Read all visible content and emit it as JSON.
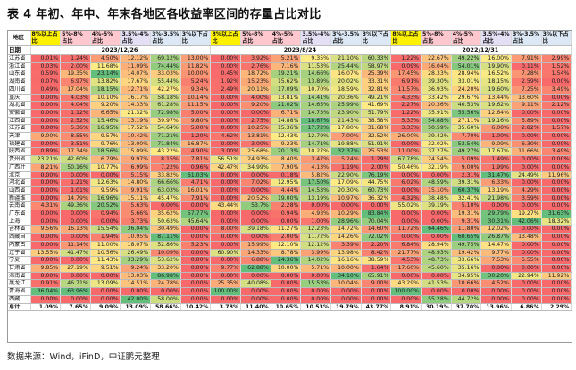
{
  "title": "表 4  年初、年中、年末各地区各收益率区间的存量占比对比",
  "source": "数据来源：Wind，iFinD，中证鹏元整理",
  "columns": {
    "region": "地区",
    "date": "日期",
    "bucket_labels": [
      "8%以上占比",
      "5%-8%占比",
      "4%-5%占比",
      "3.5%-4%占比",
      "3%-3.5%占比",
      "3%以下占比"
    ],
    "bucket_colors": [
      "#fff200",
      "#ffc7ce",
      "#ffc7ce",
      "#e4dff5",
      "#dce8f5",
      "#dce8f5"
    ],
    "dates": [
      "2023/12/26",
      "2023/8/24",
      "2022/12/31"
    ]
  },
  "rows": [
    {
      "region": "江苏省",
      "v": [
        "0.01%",
        "1.24%",
        "4.50%",
        "12.12%",
        "69.12%",
        "13.00%",
        "0.00%",
        "3.92%",
        "5.21%",
        "9.35%",
        "21.10%",
        "60.33%",
        "1.22%",
        "22.67%",
        "49.22%",
        "16.00%",
        "7.91%",
        "2.99%"
      ]
    },
    {
      "region": "浙江省",
      "v": [
        "0.03%",
        "2.00%",
        "11.68%",
        "11.09%",
        "74.44%",
        "11.82%",
        "0.00%",
        "2.76%",
        "7.16%",
        "11.53%",
        "25.44%",
        "58.97%",
        "0.09%",
        "16.04%",
        "54.01%",
        "19.90%",
        "0.11%",
        "1.52%"
      ]
    },
    {
      "region": "山东省",
      "v": [
        "0.59%",
        "19.35%",
        "23.14%",
        "14.07%",
        "33.03%",
        "10.00%",
        "0.45%",
        "18.72%",
        "19.21%",
        "14.66%",
        "16.07%",
        "25.39%",
        "17.45%",
        "28.33%",
        "28.94%",
        "16.52%",
        "7.28%",
        "1.54%"
      ]
    },
    {
      "region": "湖南省",
      "v": [
        "0.07%",
        "6.97%",
        "13.82%",
        "17.67%",
        "55.44%",
        "5.24%",
        "1.92%",
        "15.23%",
        "15.62%",
        "13.89%",
        "20.02%",
        "33.31%",
        "6.91%",
        "39.30%",
        "33.01%",
        "18.15%",
        "2.59%",
        "0.00%"
      ]
    },
    {
      "region": "四川省",
      "v": [
        "0.49%",
        "17.04%",
        "18.15%",
        "12.71%",
        "42.27%",
        "9.34%",
        "2.49%",
        "20.11%",
        "17.09%",
        "10.70%",
        "18.59%",
        "32.81%",
        "11.57%",
        "36.93%",
        "24.20%",
        "19.60%",
        "7.25%",
        "3.49%"
      ]
    },
    {
      "region": "重庆",
      "v": [
        "0.00%",
        "4.03%",
        "10.10%",
        "16.17%",
        "58.18%",
        "10.14%",
        "0.00%",
        "4.00%",
        "13.81%",
        "14.41%",
        "20.36%",
        "49.21%",
        "4.33%",
        "33.42%",
        "29.67%",
        "13.44%",
        "13.60%",
        "0.00%"
      ]
    },
    {
      "region": "湖北省",
      "v": [
        "0.00%",
        "4.04%",
        "9.20%",
        "14.33%",
        "61.28%",
        "11.15%",
        "0.00%",
        "9.20%",
        "21.02%",
        "14.65%",
        "25.99%",
        "41.69%",
        "2.27%",
        "20.36%",
        "40.53%",
        "19.62%",
        "9.11%",
        "2.12%"
      ]
    },
    {
      "region": "安徽省",
      "v": [
        "0.00%",
        "1.12%",
        "6.65%",
        "21.32%",
        "72.98%",
        "5.00%",
        "0.00%",
        "0.00%",
        "6.71%",
        "14.73%",
        "23.90%",
        "51.79%",
        "1.22%",
        "35.91%",
        "55.56%",
        "12.64%",
        "0.00%",
        "0.00%"
      ]
    },
    {
      "region": "江西省",
      "v": [
        "0.00%",
        "2.52%",
        "15.46%",
        "13.19%",
        "39.97%",
        "9.80%",
        "0.00%",
        "2.75%",
        "14.88%",
        "18.67%",
        "21.43%",
        "38.58%",
        "5.33%",
        "54.88%",
        "27.11%",
        "19.16%",
        "5.89%",
        "0.00%"
      ]
    },
    {
      "region": "江苏省",
      "v": [
        "0.00%",
        "5.36%",
        "16.95%",
        "17.52%",
        "54.64%",
        "5.00%",
        "0.00%",
        "10.25%",
        "15.36%",
        "17.72%",
        "17.80%",
        "31.68%",
        "3.33%",
        "50.59%",
        "35.60%",
        "6.00%",
        "2.82%",
        "1.57%"
      ]
    },
    {
      "region": "天津",
      "v": [
        "9.00%",
        "8.55%",
        "9.57%",
        "10.42%",
        "71.21%",
        "1.20%",
        "4.62%",
        "13.81%",
        "12.43%",
        "12.79%",
        "7.00%",
        "32.52%",
        "26.00%",
        "39.42%",
        "7.70%",
        "1.00%",
        "0.00%",
        "0.00%"
      ]
    },
    {
      "region": "福建省",
      "v": [
        "0.00%",
        "3.51%",
        "9.76%",
        "13.00%",
        "71.84%",
        "16.87%",
        "0.00%",
        "3.00%",
        "9.23%",
        "14.71%",
        "19.88%",
        "51.91%",
        "0.00%",
        "32.02%",
        "53.54%",
        "9.09%",
        "6.30%",
        "0.00%"
      ]
    },
    {
      "region": "陕西省",
      "v": [
        "0.89%",
        "17.34%",
        "18.56%",
        "15.09%",
        "43.22%",
        "4.90%",
        "3.00%",
        "25.68%",
        "20.13%",
        "10.27%",
        "32.37%",
        "25.53%",
        "11.00%",
        "37.27%",
        "49.27%",
        "17.67%",
        "11.66%",
        "3.49%"
      ]
    },
    {
      "region": "贵州省",
      "v": [
        "23.21%",
        "42.60%",
        "6.79%",
        "9.97%",
        "8.15%",
        "7.81%",
        "56.51%",
        "24.93%",
        "8.40%",
        "3.47%",
        "5.24%",
        "1.29%",
        "67.78%",
        "24.54%",
        "5.09%",
        "1.49%",
        "0.00%",
        "0.00%"
      ]
    },
    {
      "region": "广西壮",
      "v": [
        "8.21%",
        "50.16%",
        "10.77%",
        "6.99%",
        "7.22%",
        "0.96%",
        "42.47%",
        "34.99%",
        "7.90%",
        "4.13%",
        "1.19%",
        "2.00%",
        "50.46%",
        "32.19%",
        "9.00%",
        "1.99%",
        "0.00%",
        "0.00%"
      ]
    },
    {
      "region": "北京",
      "v": [
        "0.00%",
        "0.00%",
        "0.00%",
        "5.15%",
        "33.82%",
        "61.03%",
        "0.00%",
        "0.00%",
        "0.18%",
        "5.82%",
        "22.90%",
        "76.19%",
        "0.00%",
        "0.00%",
        "2.31%",
        "31.47%",
        "24.49%",
        "11.96%"
      ]
    },
    {
      "region": "河北省",
      "v": [
        "0.00%",
        "1.21%",
        "12.63%",
        "14.80%",
        "66.66%",
        "4.71%",
        "0.00%",
        "7.02%",
        "12.95%",
        "17.50%",
        "17.09%",
        "44.75%",
        "6.02%",
        "48.59%",
        "39.31%",
        "6.33%",
        "0.00%",
        "0.00%"
      ]
    },
    {
      "region": "山西省",
      "v": [
        "0.00%",
        "1.01%",
        "9.59%",
        "9.91%",
        "63.03%",
        "16.01%",
        "0.00%",
        "0.00%",
        "4.44%",
        "14.53%",
        "20.30%",
        "60.73%",
        "0.00%",
        "15.10%",
        "60.37%",
        "13.19%",
        "4.29%",
        "0.00%"
      ]
    },
    {
      "region": "新疆维",
      "v": [
        "0.00%",
        "14.79%",
        "16.96%",
        "15.11%",
        "45.47%",
        "7.91%",
        "0.00%",
        "20.52%",
        "19.00%",
        "13.19%",
        "10.97%",
        "36.32%",
        "4.32%",
        "38.48%",
        "32.41%",
        "21.98%",
        "3.59%",
        "0.00%"
      ]
    },
    {
      "region": "云南省",
      "v": [
        "4.31%",
        "49.36%",
        "20.52%",
        "5.63%",
        "0.00%",
        "0.00%",
        "43.44%",
        "53.7%",
        "2.28%",
        "0.00%",
        "0.00%",
        "0.00%",
        "55.02%",
        "39.19%",
        "5.10%",
        "0.00%",
        "0.00%",
        "0.00%"
      ]
    },
    {
      "region": "广东省",
      "v": [
        "0.00%",
        "0.00%",
        "0.94%",
        "5.66%",
        "35.62%",
        "57.77%",
        "0.00%",
        "0.00%",
        "0.94%",
        "4.93%",
        "10.29%",
        "83.84%",
        "0.00%",
        "0.00%",
        "19.31%",
        "29.79%",
        "19.27%",
        "31.63%"
      ]
    },
    {
      "region": "上海",
      "v": [
        "0.00%",
        "0.00%",
        "0.00%",
        "3.73%",
        "50.63%",
        "45.64%",
        "0.00%",
        "0.00%",
        "0.00%",
        "1.00%",
        "28.96%",
        "70.04%",
        "0.00%",
        "0.00%",
        "9.31%",
        "30.31%",
        "42.06%",
        "18.32%"
      ]
    },
    {
      "region": "吉林省",
      "v": [
        "9.56%",
        "16.13%",
        "15.54%",
        "36.04%",
        "30.49%",
        "0.00%",
        "8.00%",
        "39.18%",
        "11.27%",
        "12.23%",
        "14.72%",
        "14.60%",
        "11.72%",
        "64.46%",
        "11.80%",
        "12.02%",
        "0.00%",
        "0.00%"
      ]
    },
    {
      "region": "西藏自",
      "v": [
        "0.00%",
        "0.00%",
        "1.94%",
        "10.95%",
        "87.11%",
        "0.00%",
        "0.00%",
        "0.00%",
        "2.00%",
        "11.72%",
        "14.26%",
        "72.02%",
        "0.00%",
        "0.00%",
        "60.65%",
        "26.87%",
        "13.48%",
        "0.00%"
      ]
    },
    {
      "region": "内蒙古",
      "v": [
        "0.00%",
        "11.14%",
        "11.00%",
        "18.07%",
        "52.86%",
        "5.23%",
        "0.00%",
        "15.99%",
        "12.10%",
        "12.12%",
        "3.39%",
        "2.20%",
        "6.84%",
        "28.94%",
        "49.75%",
        "14.47%",
        "0.00%",
        "0.00%"
      ]
    },
    {
      "region": "辽宁省",
      "v": [
        "13.55%",
        "41.47%",
        "10.56%",
        "26.49%",
        "10.09%",
        "0.00%",
        "60.90%",
        "14.33%",
        "8.78%",
        "3.99%",
        "13.98%",
        "8.42%",
        "21.77%",
        "48.93%",
        "19.42%",
        "9.77%",
        "0.00%",
        "0.00%"
      ]
    },
    {
      "region": "宁夏",
      "v": [
        "0.00%",
        "0.00%",
        "11.43%",
        "33.29%",
        "53.62%",
        "0.00%",
        "0.00%",
        "6.88%",
        "24.36%",
        "14.02%",
        "16.16%",
        "38.59%",
        "4.53%",
        "48.73%",
        "33.66%",
        "7.53%",
        "5.55%",
        "0.00%"
      ]
    },
    {
      "region": "甘肃省",
      "v": [
        "9.85%",
        "27.19%",
        "9.51%",
        "9.24%",
        "33.20%",
        "0.00%",
        "9.77%",
        "62.88%",
        "10.00%",
        "5.71%",
        "10.00%",
        "1.64%",
        "17.60%",
        "45.60%",
        "35.16%",
        "0.00%",
        "0.00%",
        "0.00%"
      ]
    },
    {
      "region": "海南省",
      "v": [
        "0.00%",
        "0.00%",
        "0.00%",
        "13.03%",
        "86.98%",
        "0.00%",
        "0.00%",
        "0.00%",
        "0.00%",
        "0.00%",
        "34.10%",
        "65.91%",
        "0.00%",
        "0.00%",
        "34.95%",
        "30.20%",
        "22.94%",
        "11.92%"
      ]
    },
    {
      "region": "黑龙江",
      "v": [
        "0.91%",
        "46.71%",
        "13.09%",
        "14.51%",
        "24.78%",
        "0.00%",
        "25.35%",
        "40.08%",
        "0.00%",
        "15.53%",
        "10.04%",
        "9.00%",
        "43.29%",
        "41.53%",
        "10.66%",
        "4.52%",
        "0.00%",
        "0.00%"
      ]
    },
    {
      "region": "青海省",
      "v": [
        "36.04%",
        "63.96%",
        "0.00%",
        "0.00%",
        "0.00%",
        "0.00%",
        "100.00%",
        "0.00%",
        "0.00%",
        "0.00%",
        "0.00%",
        "0.00%",
        "100.00%",
        "0.00%",
        "0.00%",
        "0.00%",
        "0.00%",
        "0.00%"
      ]
    },
    {
      "region": "西藏",
      "v": [
        "0.00%",
        "0.00%",
        "0.00%",
        "42.00%",
        "58.00%",
        "0.00%",
        "0.00%",
        "0.00%",
        "0.00%",
        "0.00%",
        "0.00%",
        "0.00%",
        "0.00%",
        "55.28%",
        "44.72%",
        "0.00%",
        "0.00%",
        "0.00%"
      ]
    }
  ],
  "total": {
    "region": "总计",
    "v": [
      "1.09%",
      "7.65%",
      "9.09%",
      "13.09%",
      "58.66%",
      "10.42%",
      "3.78%",
      "11.40%",
      "10.65%",
      "10.53%",
      "19.79%",
      "43.77%",
      "8.91%",
      "30.19%",
      "37.70%",
      "13.96%",
      "6.86%",
      "2.29%"
    ]
  }
}
